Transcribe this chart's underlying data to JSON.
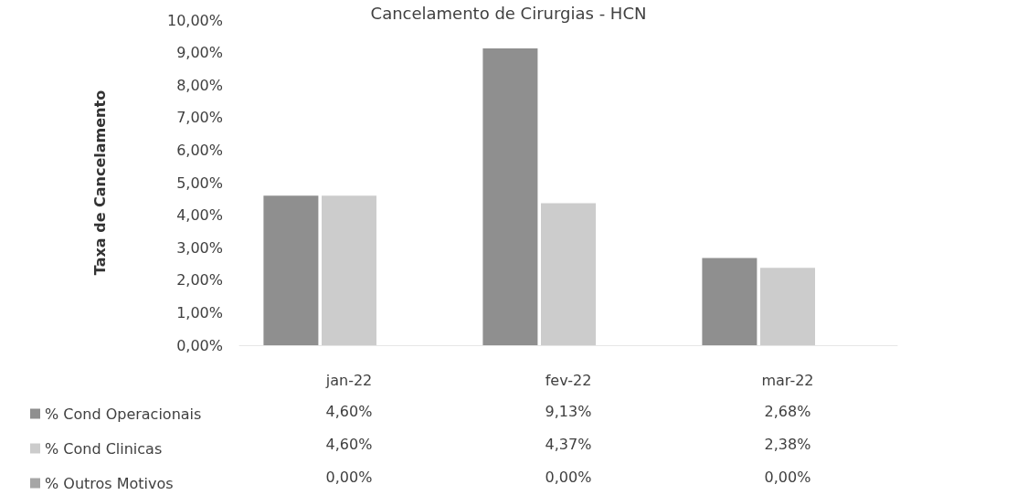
{
  "chart_data": {
    "type": "bar",
    "title": "Cancelamento de Cirurgias - HCN",
    "ylabel": "Taxa de Cancelamento",
    "categories": [
      "jan-22",
      "fev-22",
      "mar-22"
    ],
    "series": [
      {
        "name": "% Cond Operacionais",
        "color": "#8f8f8f",
        "values": [
          4.6,
          9.13,
          2.68
        ],
        "value_labels": [
          "4,60%",
          "9,13%",
          "2,68%"
        ]
      },
      {
        "name": "% Cond Clinicas",
        "color": "#cccccc",
        "values": [
          4.6,
          4.37,
          2.38
        ],
        "value_labels": [
          "4,60%",
          "4,37%",
          "2,38%"
        ]
      },
      {
        "name": "% Outros Motivos",
        "color": "#a6a6a6",
        "values": [
          0,
          0,
          0
        ],
        "value_labels": [
          "0,00%",
          "0,00%",
          "0,00%"
        ]
      }
    ],
    "ylim": [
      0,
      10
    ],
    "yticks": [
      {
        "value": 0,
        "label": "0,00%"
      },
      {
        "value": 1,
        "label": "1,00%"
      },
      {
        "value": 2,
        "label": "2,00%"
      },
      {
        "value": 3,
        "label": "3,00%"
      },
      {
        "value": 4,
        "label": "4,00%"
      },
      {
        "value": 5,
        "label": "5,00%"
      },
      {
        "value": 6,
        "label": "6,00%"
      },
      {
        "value": 7,
        "label": "7,00%"
      },
      {
        "value": 8,
        "label": "8,00%"
      },
      {
        "value": 9,
        "label": "9,00%"
      },
      {
        "value": 10,
        "label": "10,00%"
      }
    ],
    "grid": false,
    "legend": "bottom left"
  }
}
